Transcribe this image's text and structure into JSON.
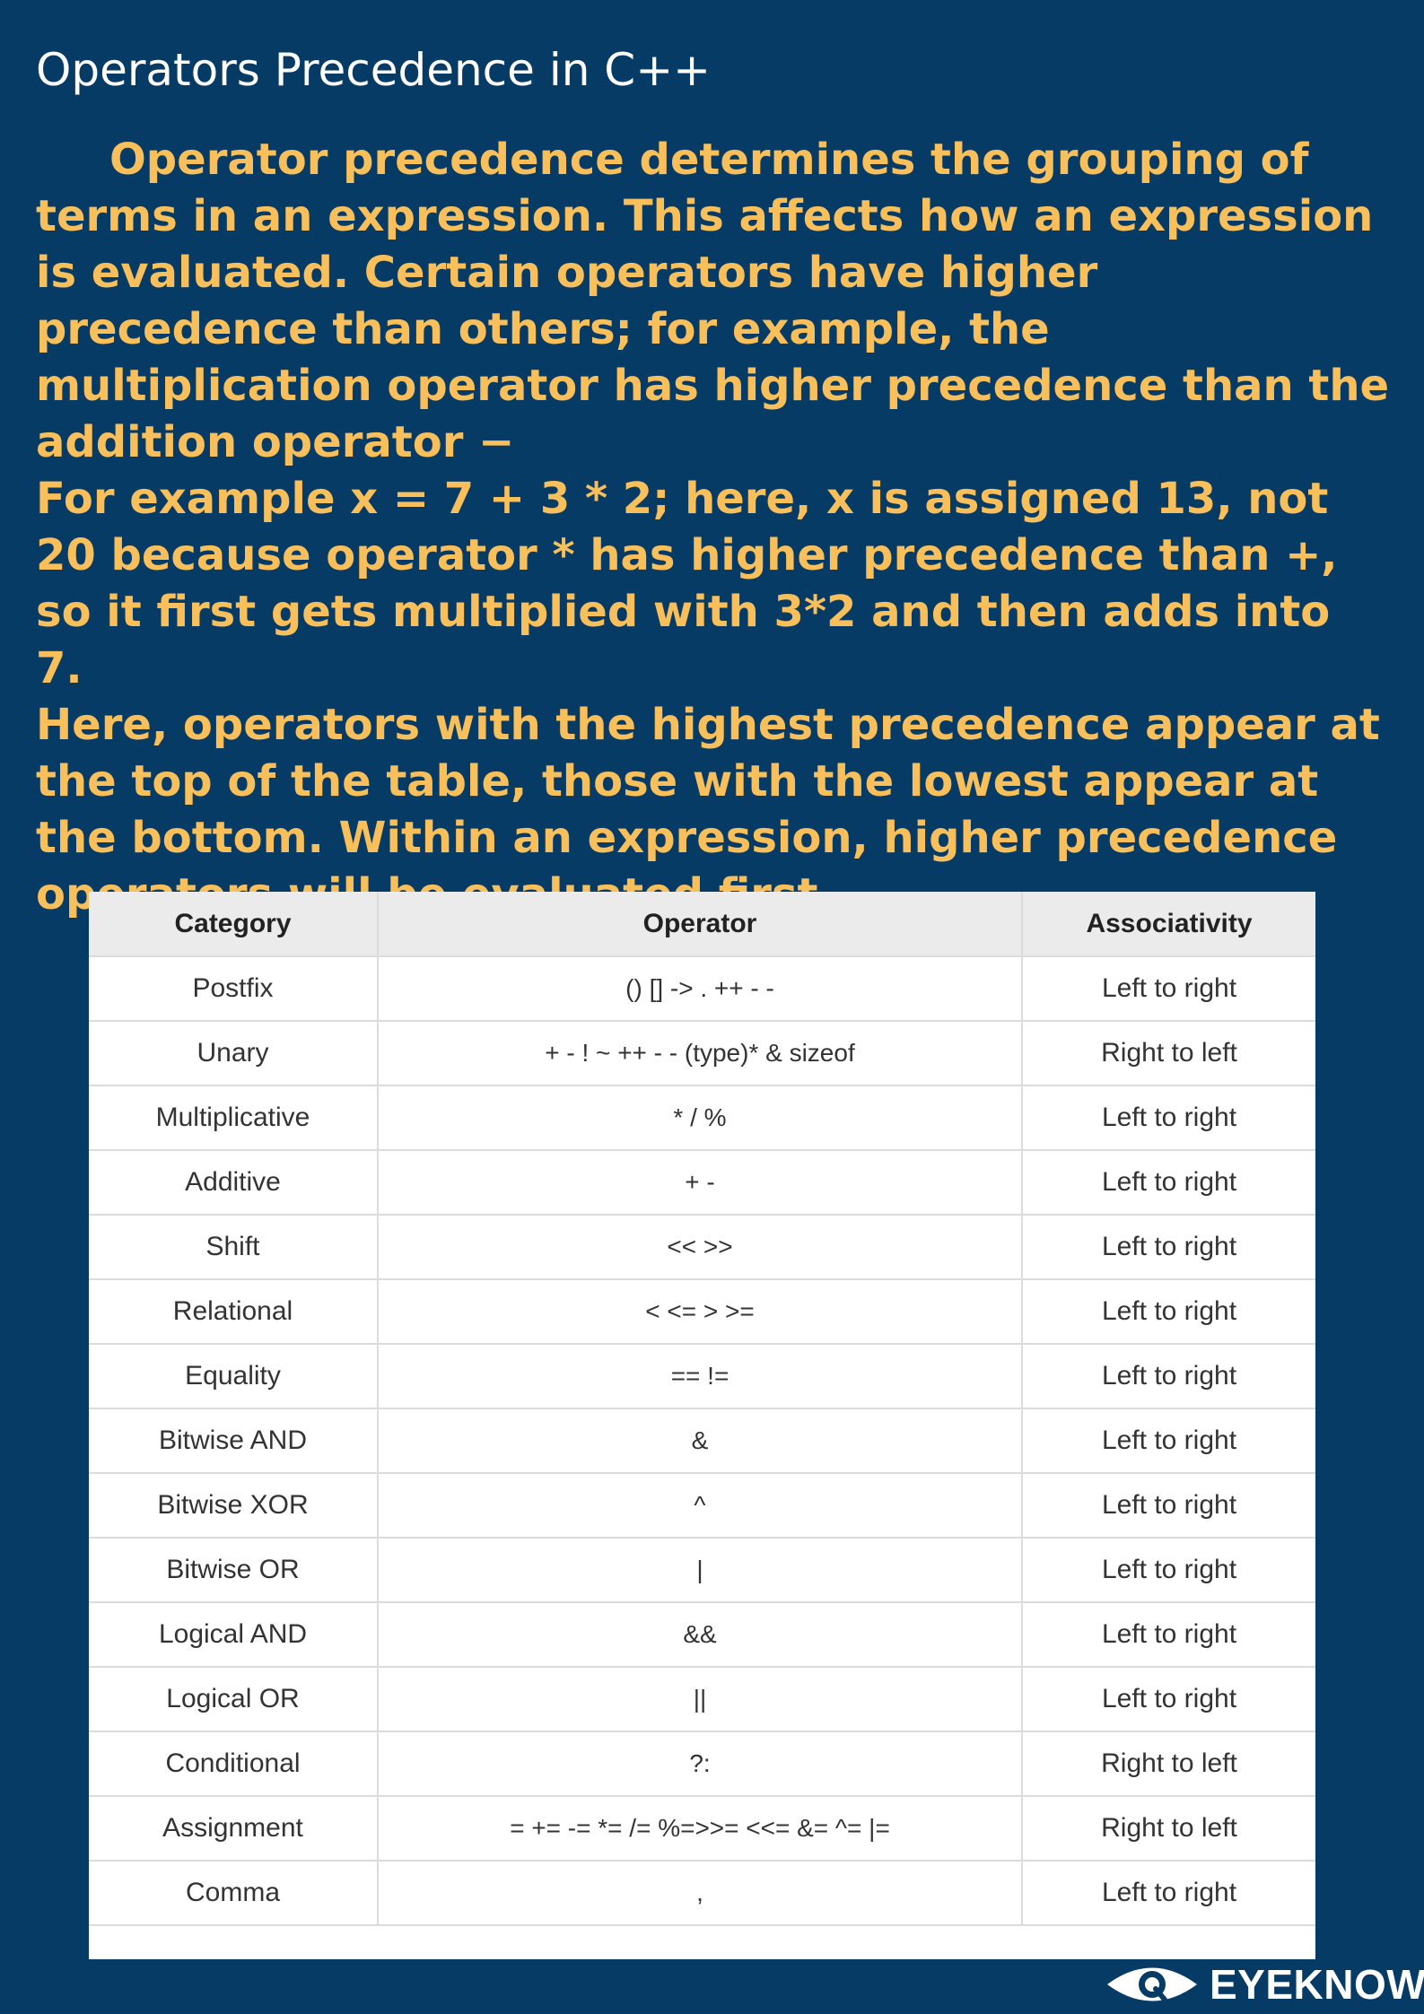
{
  "page": {
    "title": "Operators Precedence in C++",
    "paragraphs": [
      "Operator precedence determines the grouping of terms in an expression. This affects how an expression is evaluated. Certain operators have higher precedence than others; for example, the multiplication operator has higher precedence than the addition operator −",
      "For example x = 7 + 3 * 2; here, x is assigned 13, not 20 because operator * has higher precedence than +, so it first gets multiplied with 3*2 and then adds into 7.",
      "Here, operators with the highest precedence appear at the top of the table, those with the lowest appear at the bottom. Within an expression, higher precedence operators will be evaluated first."
    ]
  },
  "table": {
    "headers": [
      "Category",
      "Operator",
      "Associativity"
    ],
    "rows": [
      {
        "category": "Postfix",
        "operator": "() [] -> . ++ - -",
        "associativity": "Left to right"
      },
      {
        "category": "Unary",
        "operator": "+ - ! ~ ++ - - (type)* & sizeof",
        "associativity": "Right to left"
      },
      {
        "category": "Multiplicative",
        "operator": "* / %",
        "associativity": "Left to right"
      },
      {
        "category": "Additive",
        "operator": "+ -",
        "associativity": "Left to right"
      },
      {
        "category": "Shift",
        "operator": "<< >>",
        "associativity": "Left to right"
      },
      {
        "category": "Relational",
        "operator": "< <= > >=",
        "associativity": "Left to right"
      },
      {
        "category": "Equality",
        "operator": "== !=",
        "associativity": "Left to right"
      },
      {
        "category": "Bitwise AND",
        "operator": "&",
        "associativity": "Left to right"
      },
      {
        "category": "Bitwise XOR",
        "operator": "^",
        "associativity": "Left to right"
      },
      {
        "category": "Bitwise OR",
        "operator": "|",
        "associativity": "Left to right"
      },
      {
        "category": "Logical AND",
        "operator": "&&",
        "associativity": "Left to right"
      },
      {
        "category": "Logical OR",
        "operator": "||",
        "associativity": "Left to right"
      },
      {
        "category": "Conditional",
        "operator": "?:",
        "associativity": "Right to left"
      },
      {
        "category": "Assignment",
        "operator": "= += -= *= /= %=>>= <<= &= ^= |=",
        "associativity": "Right to left"
      },
      {
        "category": "Comma",
        "operator": ",",
        "associativity": "Left to right"
      }
    ]
  },
  "brand": {
    "name": "EYEKNOW",
    "icon": "eye-logo-icon"
  },
  "colors": {
    "background": "#063b66",
    "title": "#ffffff",
    "body_text": "#f9bf5b",
    "table_header_bg": "#ebebeb",
    "table_border": "#dcdcdc"
  }
}
